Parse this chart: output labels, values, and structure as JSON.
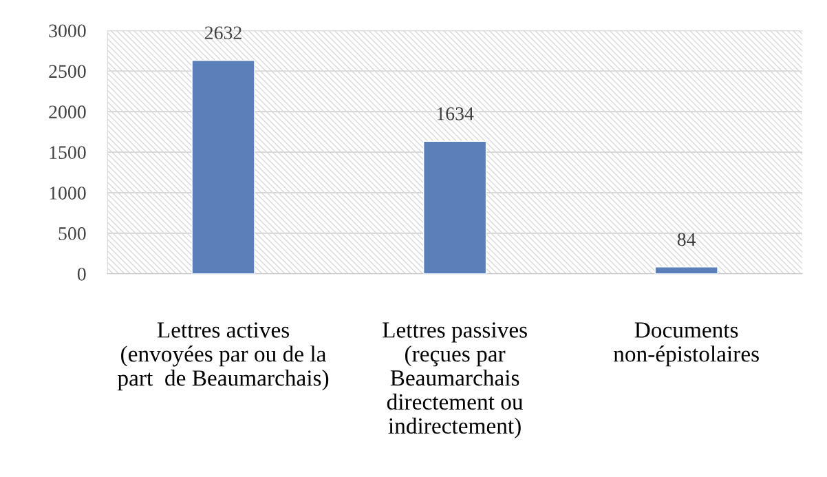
{
  "chart_data": {
    "type": "bar",
    "categories": [
      "Lettres actives\n(envoyées par ou de la\npart  de Beaumarchais)",
      "Lettres passives\n(reçues par\nBeaumarchais\ndirectement ou\nindirectement)",
      "Documents\nnon-épistolaires"
    ],
    "values": [
      2632,
      1634,
      84
    ],
    "color": "#5b7fb8",
    "ylim": [
      0,
      3000
    ],
    "yticks": [
      0,
      500,
      1000,
      1500,
      2000,
      2500,
      3000
    ],
    "grid": "y",
    "data_labels": true
  }
}
